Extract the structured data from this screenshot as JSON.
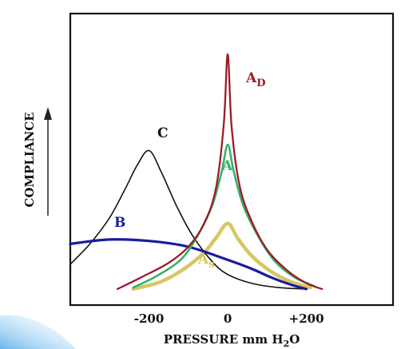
{
  "chart_data": {
    "type": "line",
    "title": "",
    "xlabel": "PRESSURE mm H2O",
    "ylabel": "COMPLIANCE",
    "x_ticks": [
      "-200",
      "0",
      "+200"
    ],
    "xlim": [
      -400,
      420
    ],
    "ylim": [
      0,
      10
    ],
    "grid": false,
    "legend": "none",
    "series": [
      {
        "name": "AD",
        "label_main": "A",
        "label_sub": "D",
        "color": "#9b1c28",
        "points": [
          [
            -280,
            0.55
          ],
          [
            -220,
            0.95
          ],
          [
            -150,
            1.45
          ],
          [
            -100,
            2.0
          ],
          [
            -60,
            2.8
          ],
          [
            -30,
            4.0
          ],
          [
            -10,
            6.2
          ],
          [
            0,
            8.6
          ],
          [
            10,
            6.1
          ],
          [
            30,
            4.1
          ],
          [
            60,
            2.9
          ],
          [
            100,
            1.9
          ],
          [
            150,
            1.2
          ],
          [
            200,
            0.75
          ],
          [
            240,
            0.55
          ]
        ]
      },
      {
        "name": "A",
        "label_main": "A",
        "color": "#36b06c",
        "points": [
          [
            -240,
            0.6
          ],
          [
            -180,
            1.0
          ],
          [
            -120,
            1.55
          ],
          [
            -80,
            2.3
          ],
          [
            -40,
            3.4
          ],
          [
            -15,
            4.6
          ],
          [
            0,
            5.5
          ],
          [
            15,
            4.6
          ],
          [
            40,
            3.4
          ],
          [
            80,
            2.3
          ],
          [
            120,
            1.5
          ],
          [
            170,
            0.95
          ],
          [
            220,
            0.65
          ]
        ]
      },
      {
        "name": "As",
        "label_main": "A",
        "label_sub": "s",
        "color": "#d6c765",
        "points": [
          [
            -240,
            0.55
          ],
          [
            -170,
            0.8
          ],
          [
            -110,
            1.25
          ],
          [
            -60,
            1.8
          ],
          [
            -30,
            2.3
          ],
          [
            0,
            2.8
          ],
          [
            25,
            2.3
          ],
          [
            60,
            1.7
          ],
          [
            110,
            1.15
          ],
          [
            160,
            0.8
          ],
          [
            210,
            0.6
          ]
        ]
      },
      {
        "name": "B",
        "label_main": "B",
        "color": "#1a1aa0",
        "points": [
          [
            -400,
            2.1
          ],
          [
            -300,
            2.25
          ],
          [
            -200,
            2.2
          ],
          [
            -100,
            2.0
          ],
          [
            0,
            1.55
          ],
          [
            60,
            1.25
          ],
          [
            110,
            0.95
          ],
          [
            160,
            0.7
          ],
          [
            200,
            0.55
          ]
        ]
      },
      {
        "name": "C",
        "label_main": "C",
        "color": "#111111",
        "points": [
          [
            -400,
            1.4
          ],
          [
            -350,
            2.1
          ],
          [
            -300,
            3.0
          ],
          [
            -260,
            4.0
          ],
          [
            -230,
            4.8
          ],
          [
            -200,
            5.3
          ],
          [
            -170,
            4.6
          ],
          [
            -130,
            3.4
          ],
          [
            -90,
            2.4
          ],
          [
            -40,
            1.5
          ],
          [
            0,
            1.05
          ],
          [
            60,
            0.75
          ],
          [
            130,
            0.6
          ],
          [
            200,
            0.55
          ]
        ]
      }
    ]
  }
}
